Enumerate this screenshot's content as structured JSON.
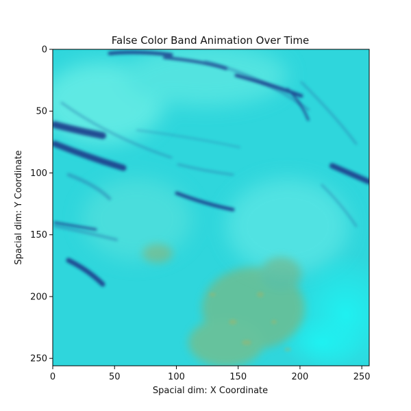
{
  "chart_data": {
    "type": "heatmap",
    "title": "False Color Band Animation Over Time",
    "xlabel": "Spacial dim: X Coordinate",
    "ylabel": "Spacial dim: Y Coordinate",
    "xlim": [
      0,
      256
    ],
    "ylim": [
      256,
      0
    ],
    "x_ticks": [
      0,
      50,
      100,
      150,
      200,
      250
    ],
    "y_ticks": [
      0,
      50,
      100,
      150,
      200,
      250
    ],
    "x_tick_labels": [
      "0",
      "50",
      "100",
      "150",
      "200",
      "250"
    ],
    "y_tick_labels": [
      "0",
      "50",
      "100",
      "150",
      "200",
      "250"
    ],
    "grid": false,
    "colors": {
      "base": "#2fd6dc",
      "light": "#6ff0e6",
      "bright": "#1ef2f2",
      "dark_streak": "#1e3a8a",
      "mid_streak": "#2a7fb0",
      "olive_patch": "#8db06a"
    }
  }
}
